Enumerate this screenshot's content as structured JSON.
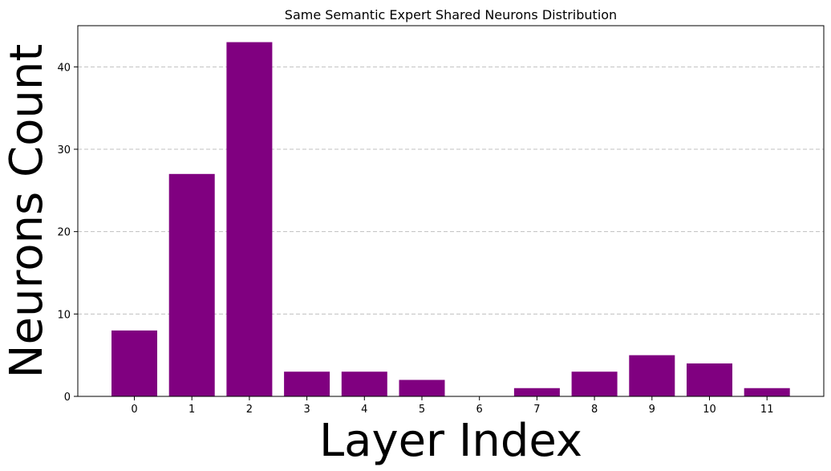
{
  "chart_data": {
    "type": "bar",
    "title": "Same Semantic Expert Shared Neurons Distribution",
    "xlabel": "Layer Index",
    "ylabel": "Neurons Count",
    "categories": [
      "0",
      "1",
      "2",
      "3",
      "4",
      "5",
      "6",
      "7",
      "8",
      "9",
      "10",
      "11"
    ],
    "values": [
      8,
      27,
      43,
      3,
      3,
      2,
      0,
      1,
      3,
      5,
      4,
      1
    ],
    "yticks": [
      "0",
      "10",
      "20",
      "30",
      "40"
    ],
    "ylim": [
      0,
      45
    ],
    "grid": "y-dashed",
    "legend": "none",
    "bar_color": "#800080",
    "grid_color": "#c0c0c0"
  }
}
